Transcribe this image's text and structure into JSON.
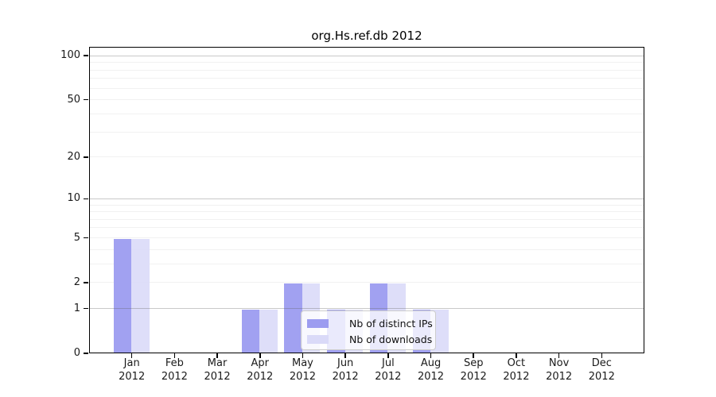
{
  "chart_data": {
    "type": "bar",
    "title": "org.Hs.ref.db 2012",
    "months": [
      "Jan",
      "Feb",
      "Mar",
      "Apr",
      "May",
      "Jun",
      "Jul",
      "Aug",
      "Sep",
      "Oct",
      "Nov",
      "Dec"
    ],
    "year_label": "2012",
    "series": [
      {
        "name": "Nb of distinct IPs",
        "color": "#9c9cf0",
        "values": [
          5,
          0,
          0,
          1,
          2,
          1,
          2,
          1,
          0,
          0,
          0,
          0
        ]
      },
      {
        "name": "Nb of downloads",
        "color": "#dadaf8",
        "values": [
          5,
          0,
          0,
          1,
          2,
          1,
          2,
          1,
          0,
          0,
          0,
          0
        ]
      }
    ],
    "y_scale": "log1p",
    "ylim": [
      0,
      115
    ],
    "y_ticks": [
      100,
      50,
      20,
      10,
      5,
      2,
      1,
      0
    ],
    "grid_major": [
      1,
      10,
      100
    ],
    "grid_minor": [
      2,
      3,
      4,
      5,
      6,
      7,
      8,
      9,
      20,
      30,
      40,
      50,
      60,
      70,
      80,
      90
    ],
    "legend": {
      "position": "lower center",
      "entries": [
        "Nb of distinct IPs",
        "Nb of downloads"
      ]
    }
  }
}
